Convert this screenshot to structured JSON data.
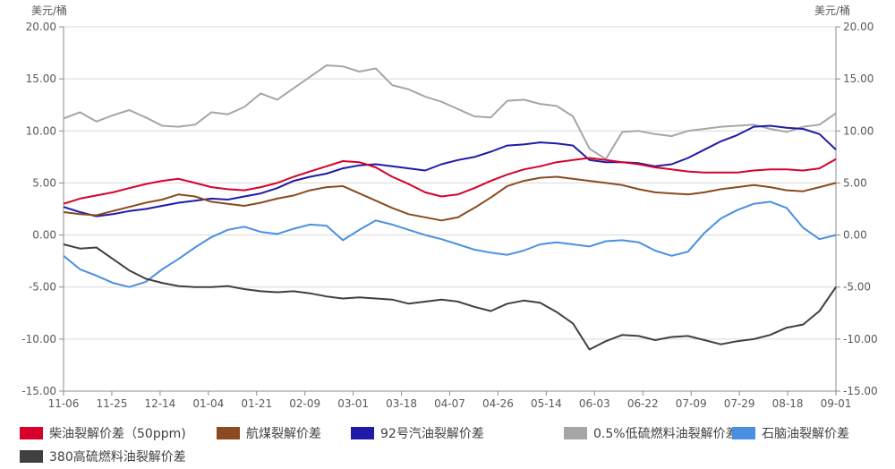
{
  "chart_data": {
    "type": "line",
    "unit_left": "美元/桶",
    "unit_right": "美元/桶",
    "ylim": [
      -15,
      20
    ],
    "y_ticks": [
      "20.00",
      "15.00",
      "10.00",
      "5.00",
      "0.00",
      "-5.00",
      "-10.00",
      "-15.00"
    ],
    "y_tick_values": [
      20,
      15,
      10,
      5,
      0,
      -5,
      -10,
      -15
    ],
    "x_ticks": [
      "11-06",
      "11-25",
      "12-14",
      "01-04",
      "01-21",
      "02-09",
      "03-01",
      "03-18",
      "04-07",
      "04-26",
      "05-14",
      "06-03",
      "06-22",
      "07-09",
      "07-29",
      "08-18",
      "09-01"
    ],
    "grid": "horizontal",
    "legend_position": "bottom",
    "series": [
      {
        "name": "0.5%低硫燃料油裂解价差",
        "color": "#a6a6a6",
        "values": [
          11.2,
          11.8,
          10.9,
          11.5,
          12.0,
          11.3,
          10.5,
          10.4,
          10.6,
          11.8,
          11.6,
          12.3,
          13.6,
          13.0,
          14.1,
          15.2,
          16.3,
          16.2,
          15.7,
          16.0,
          14.4,
          14.0,
          13.3,
          12.8,
          12.1,
          11.4,
          11.3,
          12.9,
          13.0,
          12.6,
          12.4,
          11.4,
          8.3,
          7.3,
          9.9,
          10.0,
          9.7,
          9.5,
          10.0,
          10.2,
          10.4,
          10.5,
          10.6,
          10.2,
          9.9,
          10.4,
          10.6,
          11.7
        ]
      },
      {
        "name": "92号汽油裂解价差",
        "color": "#1f1aa8",
        "values": [
          2.7,
          2.2,
          1.8,
          2.0,
          2.3,
          2.5,
          2.8,
          3.1,
          3.3,
          3.5,
          3.4,
          3.7,
          4.0,
          4.5,
          5.2,
          5.6,
          5.9,
          6.4,
          6.7,
          6.8,
          6.6,
          6.4,
          6.2,
          6.8,
          7.2,
          7.5,
          8.0,
          8.6,
          8.7,
          8.9,
          8.8,
          8.6,
          7.2,
          7.0,
          7.0,
          6.9,
          6.6,
          6.8,
          7.4,
          8.2,
          9.0,
          9.6,
          10.4,
          10.5,
          10.3,
          10.2,
          9.7,
          8.2
        ]
      },
      {
        "name": "柴油裂解价差（50ppm)",
        "color": "#d7002a",
        "values": [
          3.0,
          3.5,
          3.8,
          4.1,
          4.5,
          4.9,
          5.2,
          5.4,
          5.0,
          4.6,
          4.4,
          4.3,
          4.6,
          5.0,
          5.6,
          6.1,
          6.6,
          7.1,
          7.0,
          6.5,
          5.6,
          4.9,
          4.1,
          3.7,
          3.9,
          4.5,
          5.2,
          5.8,
          6.3,
          6.6,
          7.0,
          7.2,
          7.4,
          7.2,
          7.0,
          6.8,
          6.5,
          6.3,
          6.1,
          6.0,
          6.0,
          6.0,
          6.2,
          6.3,
          6.3,
          6.2,
          6.4,
          7.3
        ]
      },
      {
        "name": "航煤裂解价差",
        "color": "#8b4a1f",
        "values": [
          2.2,
          2.0,
          1.9,
          2.3,
          2.7,
          3.1,
          3.4,
          3.9,
          3.7,
          3.2,
          3.0,
          2.8,
          3.1,
          3.5,
          3.8,
          4.3,
          4.6,
          4.7,
          4.0,
          3.3,
          2.6,
          2.0,
          1.7,
          1.4,
          1.7,
          2.6,
          3.6,
          4.7,
          5.2,
          5.5,
          5.6,
          5.4,
          5.2,
          5.0,
          4.8,
          4.4,
          4.1,
          4.0,
          3.9,
          4.1,
          4.4,
          4.6,
          4.8,
          4.6,
          4.3,
          4.2,
          4.6,
          5.0
        ]
      },
      {
        "name": "石脑油裂解价差",
        "color": "#4a90e2",
        "values": [
          -2.0,
          -3.3,
          -3.9,
          -4.6,
          -5.0,
          -4.5,
          -3.3,
          -2.3,
          -1.2,
          -0.2,
          0.5,
          0.8,
          0.3,
          0.1,
          0.6,
          1.0,
          0.9,
          -0.5,
          0.5,
          1.4,
          1.0,
          0.5,
          0.0,
          -0.4,
          -0.9,
          -1.4,
          -1.7,
          -1.9,
          -1.5,
          -0.9,
          -0.7,
          -0.9,
          -1.1,
          -0.6,
          -0.5,
          -0.7,
          -1.5,
          -2.0,
          -1.6,
          0.2,
          1.6,
          2.4,
          3.0,
          3.2,
          2.6,
          0.7,
          -0.4,
          0.0
        ]
      },
      {
        "name": "380高硫燃料油裂解价差",
        "color": "#404040",
        "values": [
          -0.9,
          -1.3,
          -1.2,
          -2.3,
          -3.4,
          -4.2,
          -4.6,
          -4.9,
          -5.0,
          -5.0,
          -4.9,
          -5.2,
          -5.4,
          -5.5,
          -5.4,
          -5.6,
          -5.9,
          -6.1,
          -6.0,
          -6.1,
          -6.2,
          -6.6,
          -6.4,
          -6.2,
          -6.4,
          -6.9,
          -7.3,
          -6.6,
          -6.3,
          -6.5,
          -7.4,
          -8.5,
          -11.0,
          -10.2,
          -9.6,
          -9.7,
          -10.1,
          -9.8,
          -9.7,
          -10.1,
          -10.5,
          -10.2,
          -10.0,
          -9.6,
          -8.9,
          -8.6,
          -7.3,
          -5.0
        ]
      }
    ]
  }
}
